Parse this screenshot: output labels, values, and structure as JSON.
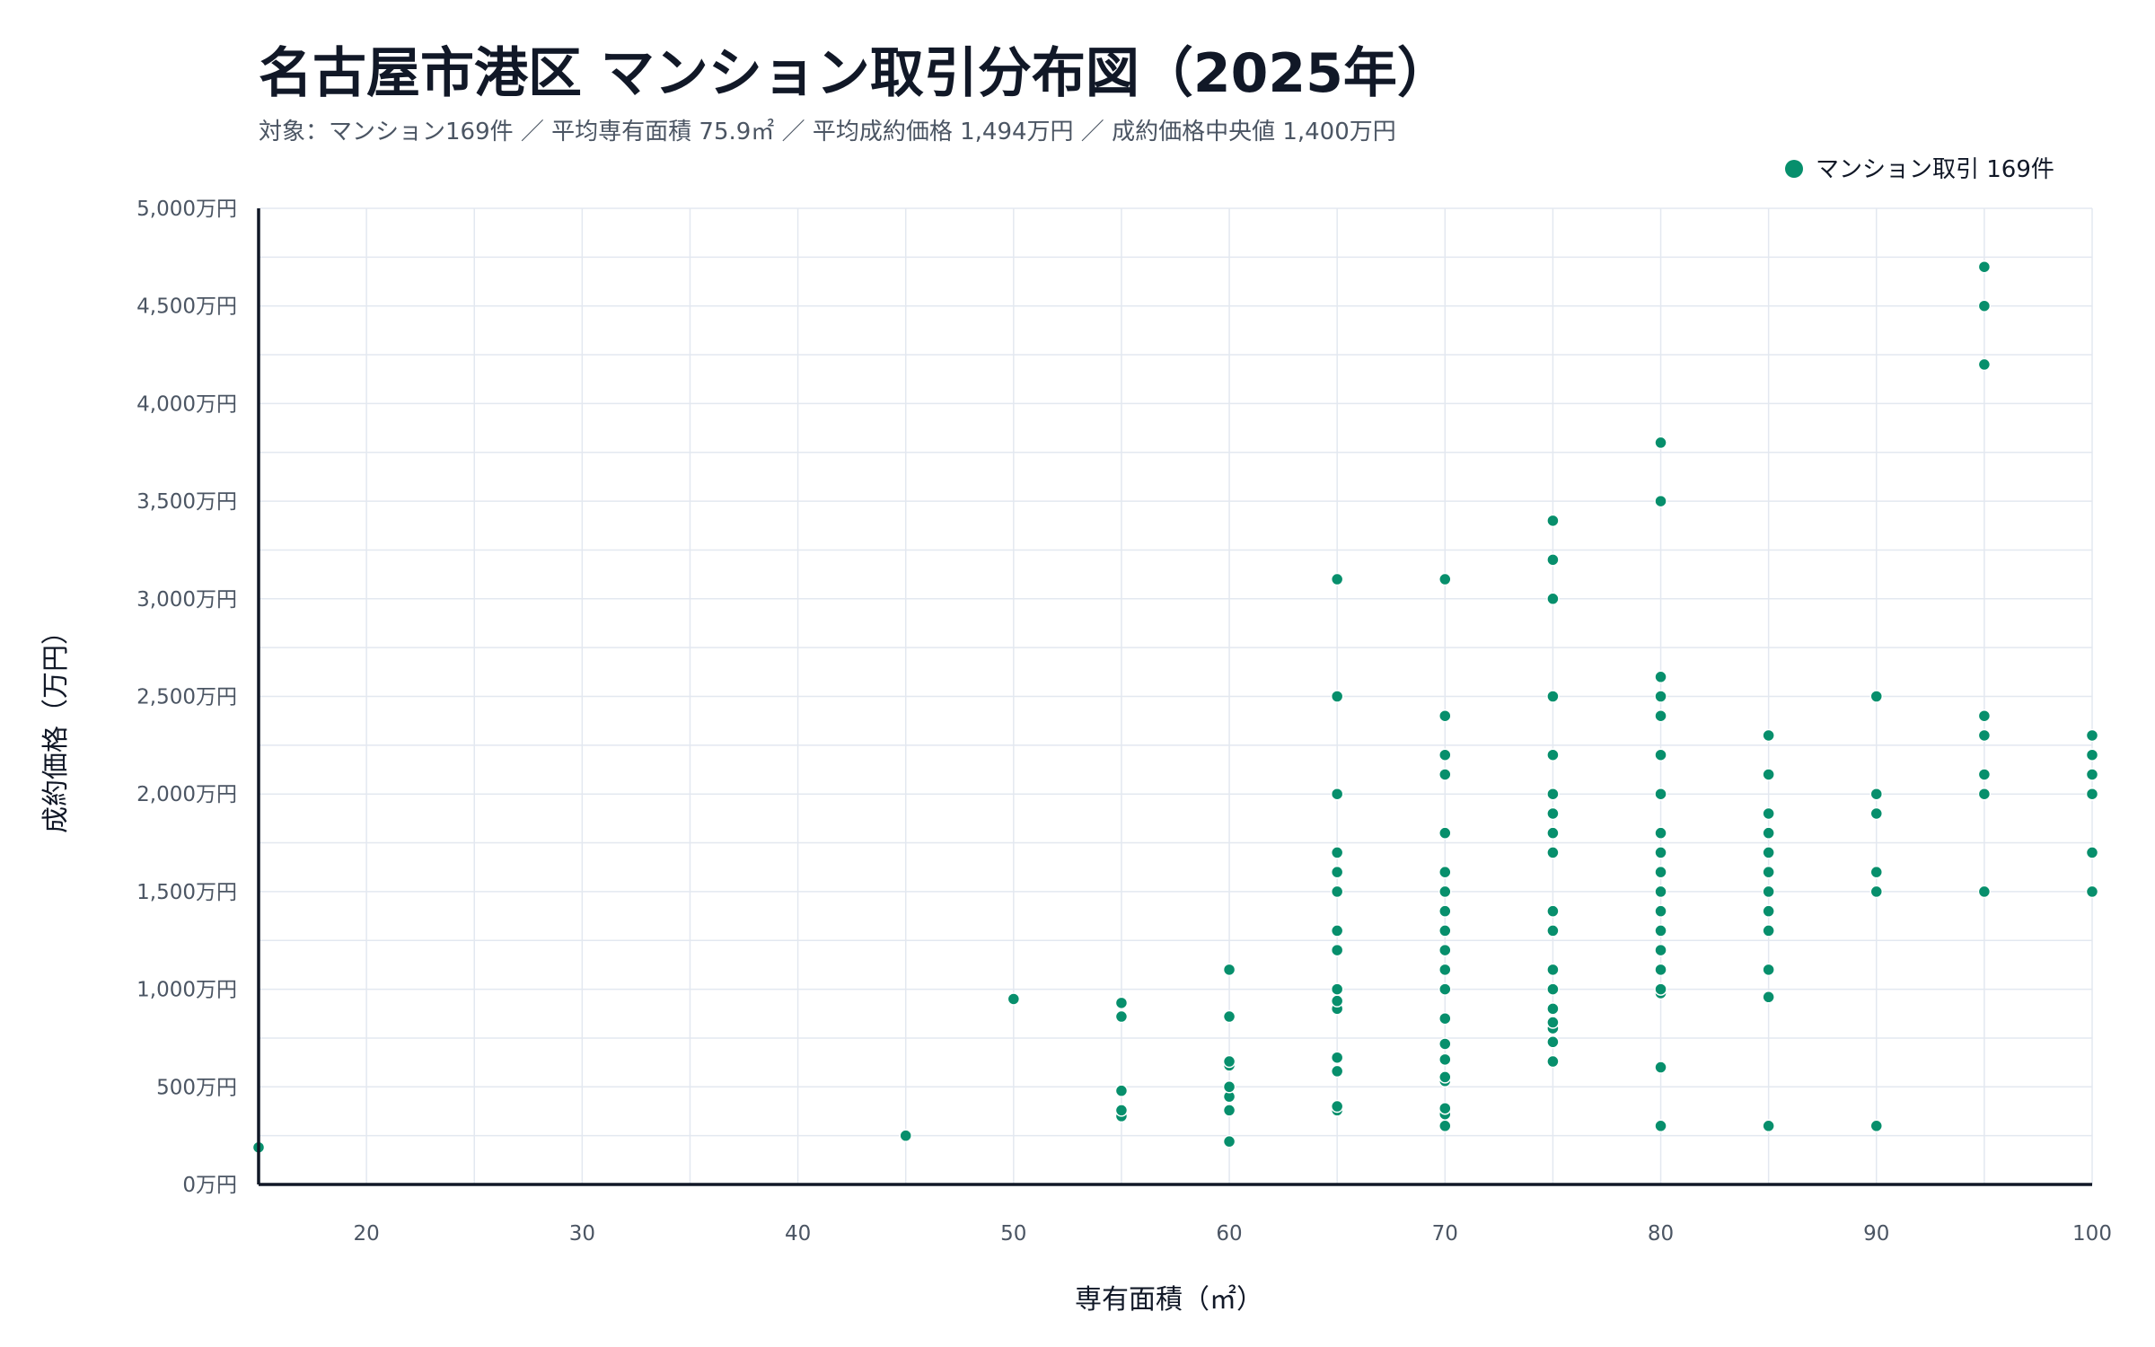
{
  "chart_data": {
    "type": "scatter",
    "title": "名古屋市港区 マンション取引分布図（2025年）",
    "subtitle": "対象：マンション169件 ／ 平均専有面積 75.9㎡ ／ 平均成約価格 1,494万円 ／ 成約価格中央値 1,400万円",
    "xlabel": "専有面積（㎡）",
    "ylabel": "成約価格（万円）",
    "xlim": [
      15,
      100
    ],
    "ylim": [
      0,
      5000
    ],
    "x_ticks": [
      20,
      30,
      40,
      50,
      60,
      70,
      80,
      90,
      100
    ],
    "y_ticks": [
      0,
      500,
      1000,
      1500,
      2000,
      2500,
      3000,
      3500,
      4000,
      4500,
      5000
    ],
    "y_tick_labels": [
      "0万円",
      "500万円",
      "1,000万円",
      "1,500万円",
      "2,000万円",
      "2,500万円",
      "3,000万円",
      "3,500万円",
      "4,000万円",
      "4,500万円",
      "5,000万円"
    ],
    "grid": true,
    "legend_position": "top-right",
    "color": "#078f6c",
    "series": [
      {
        "name": "マンション取引 169件",
        "points": [
          [
            15,
            190
          ],
          [
            45,
            250
          ],
          [
            50,
            950
          ],
          [
            55,
            350
          ],
          [
            55,
            380
          ],
          [
            55,
            480
          ],
          [
            55,
            860
          ],
          [
            55,
            930
          ],
          [
            60,
            220
          ],
          [
            60,
            380
          ],
          [
            60,
            450
          ],
          [
            60,
            500
          ],
          [
            60,
            610
          ],
          [
            60,
            630
          ],
          [
            60,
            860
          ],
          [
            60,
            1100
          ],
          [
            65,
            380
          ],
          [
            65,
            400
          ],
          [
            65,
            580
          ],
          [
            65,
            650
          ],
          [
            65,
            900
          ],
          [
            65,
            940
          ],
          [
            65,
            1000
          ],
          [
            65,
            1200
          ],
          [
            65,
            1300
          ],
          [
            65,
            1500
          ],
          [
            65,
            1600
          ],
          [
            65,
            1700
          ],
          [
            65,
            2000
          ],
          [
            65,
            2500
          ],
          [
            65,
            3100
          ],
          [
            70,
            300
          ],
          [
            70,
            360
          ],
          [
            70,
            390
          ],
          [
            70,
            530
          ],
          [
            70,
            550
          ],
          [
            70,
            640
          ],
          [
            70,
            720
          ],
          [
            70,
            850
          ],
          [
            70,
            1000
          ],
          [
            70,
            1100
          ],
          [
            70,
            1200
          ],
          [
            70,
            1300
          ],
          [
            70,
            1400
          ],
          [
            70,
            1500
          ],
          [
            70,
            1600
          ],
          [
            70,
            1800
          ],
          [
            70,
            2100
          ],
          [
            70,
            2200
          ],
          [
            70,
            2400
          ],
          [
            70,
            3100
          ],
          [
            75,
            630
          ],
          [
            75,
            730
          ],
          [
            75,
            800
          ],
          [
            75,
            830
          ],
          [
            75,
            900
          ],
          [
            75,
            1000
          ],
          [
            75,
            1100
          ],
          [
            75,
            1300
          ],
          [
            75,
            1400
          ],
          [
            75,
            1700
          ],
          [
            75,
            1800
          ],
          [
            75,
            1900
          ],
          [
            75,
            2000
          ],
          [
            75,
            2200
          ],
          [
            75,
            2500
          ],
          [
            75,
            3000
          ],
          [
            75,
            3200
          ],
          [
            75,
            3400
          ],
          [
            80,
            300
          ],
          [
            80,
            600
          ],
          [
            80,
            980
          ],
          [
            80,
            1000
          ],
          [
            80,
            1100
          ],
          [
            80,
            1200
          ],
          [
            80,
            1300
          ],
          [
            80,
            1400
          ],
          [
            80,
            1500
          ],
          [
            80,
            1600
          ],
          [
            80,
            1700
          ],
          [
            80,
            1800
          ],
          [
            80,
            2000
          ],
          [
            80,
            2200
          ],
          [
            80,
            2400
          ],
          [
            80,
            2500
          ],
          [
            80,
            2600
          ],
          [
            80,
            3500
          ],
          [
            80,
            3800
          ],
          [
            85,
            300
          ],
          [
            85,
            960
          ],
          [
            85,
            1100
          ],
          [
            85,
            1300
          ],
          [
            85,
            1400
          ],
          [
            85,
            1500
          ],
          [
            85,
            1600
          ],
          [
            85,
            1700
          ],
          [
            85,
            1800
          ],
          [
            85,
            1900
          ],
          [
            85,
            2100
          ],
          [
            85,
            2300
          ],
          [
            90,
            300
          ],
          [
            90,
            1500
          ],
          [
            90,
            1600
          ],
          [
            90,
            1900
          ],
          [
            90,
            2000
          ],
          [
            90,
            2500
          ],
          [
            95,
            1500
          ],
          [
            95,
            2000
          ],
          [
            95,
            2100
          ],
          [
            95,
            2300
          ],
          [
            95,
            2400
          ],
          [
            95,
            4200
          ],
          [
            95,
            4500
          ],
          [
            95,
            4700
          ],
          [
            100,
            1500
          ],
          [
            100,
            1700
          ],
          [
            100,
            2000
          ],
          [
            100,
            2100
          ],
          [
            100,
            2200
          ],
          [
            100,
            2300
          ]
        ]
      }
    ]
  }
}
